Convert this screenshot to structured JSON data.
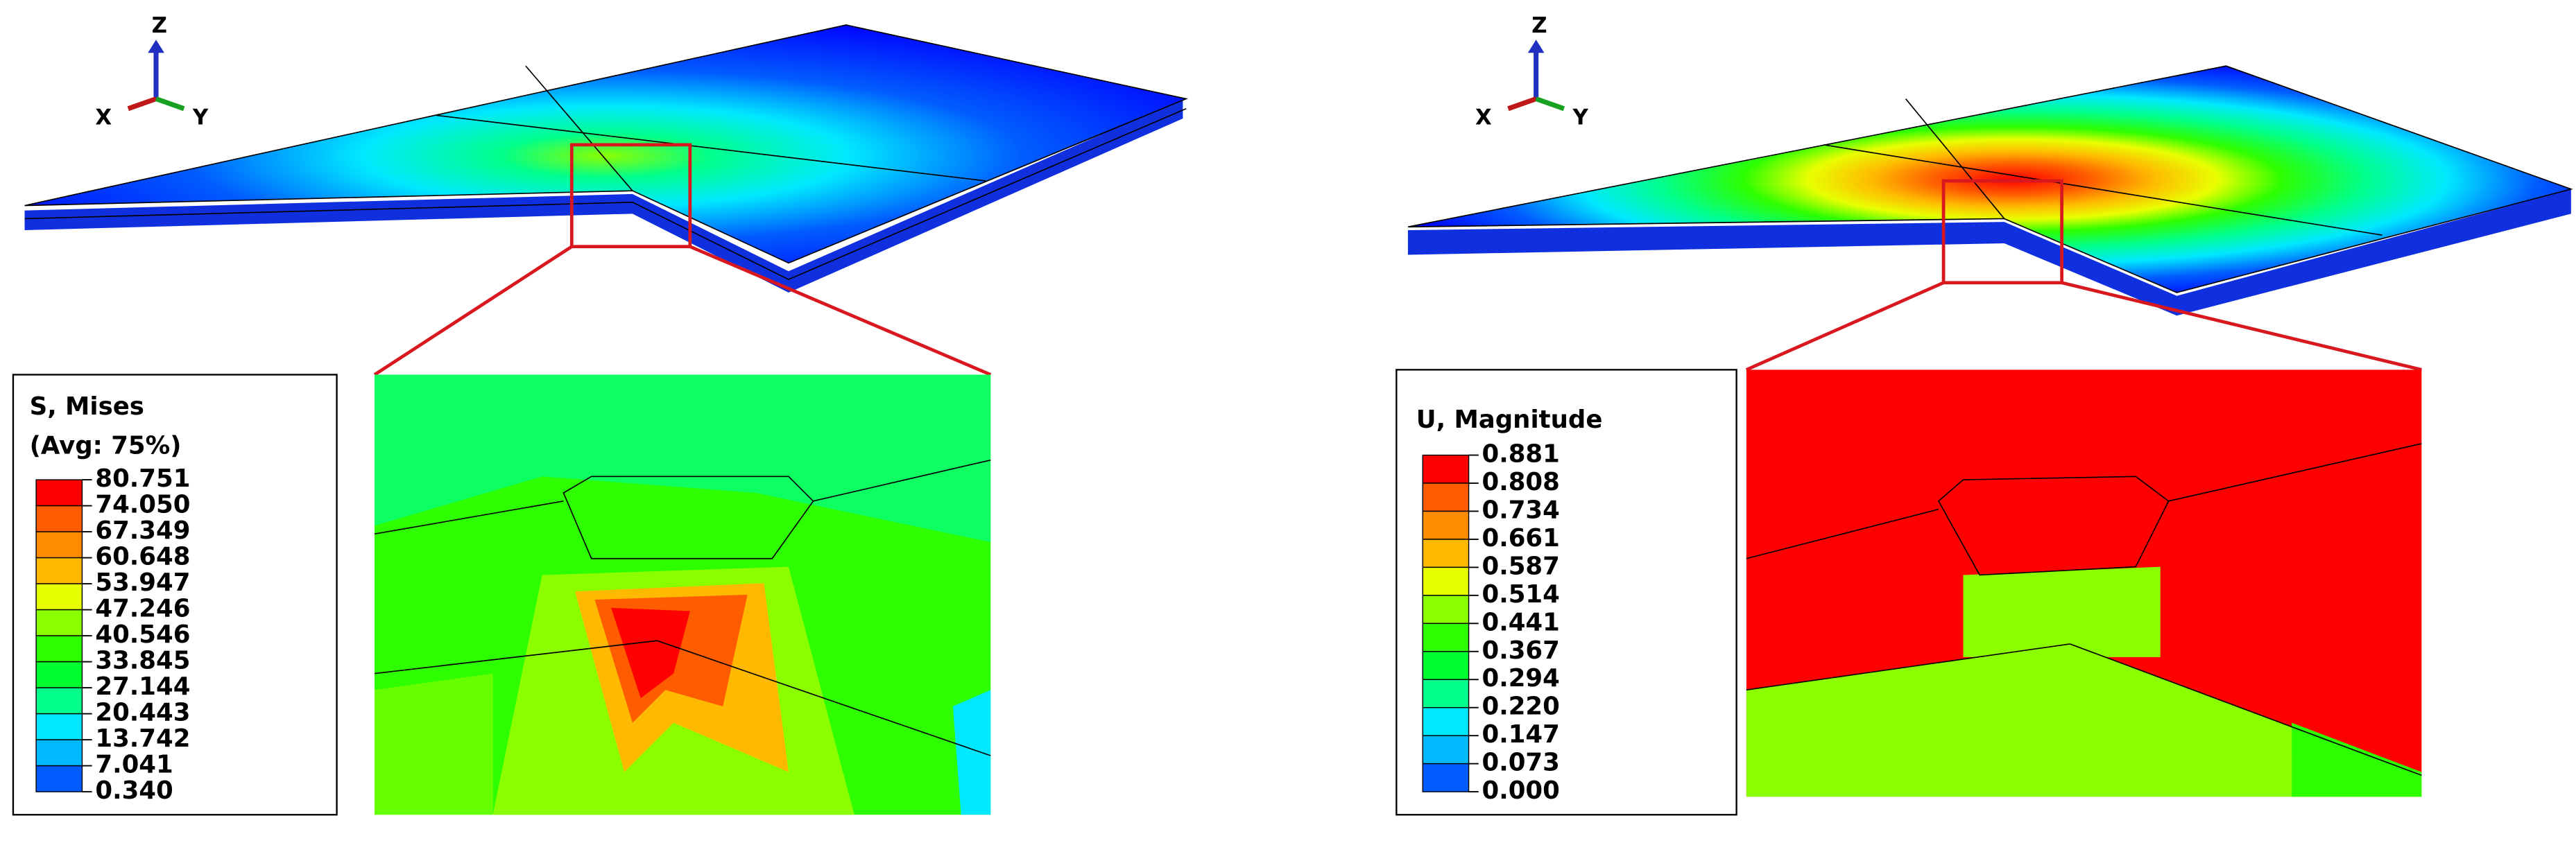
{
  "panels": [
    {
      "axes": {
        "z": "Z",
        "x": "X",
        "y": "Y"
      },
      "legend": {
        "title": [
          "S, Mises",
          "(Avg: 75%)"
        ],
        "values": [
          "80.751",
          "74.050",
          "67.349",
          "60.648",
          "53.947",
          "47.246",
          "40.546",
          "33.845",
          "27.144",
          "20.443",
          "13.742",
          "7.041",
          "0.340"
        ]
      }
    },
    {
      "axes": {
        "z": "Z",
        "x": "X",
        "y": "Y"
      },
      "legend": {
        "title": [
          "U, Magnitude"
        ],
        "values": [
          "0.881",
          "0.808",
          "0.734",
          "0.661",
          "0.587",
          "0.514",
          "0.441",
          "0.367",
          "0.294",
          "0.220",
          "0.147",
          "0.073",
          "0.000"
        ]
      }
    }
  ]
}
